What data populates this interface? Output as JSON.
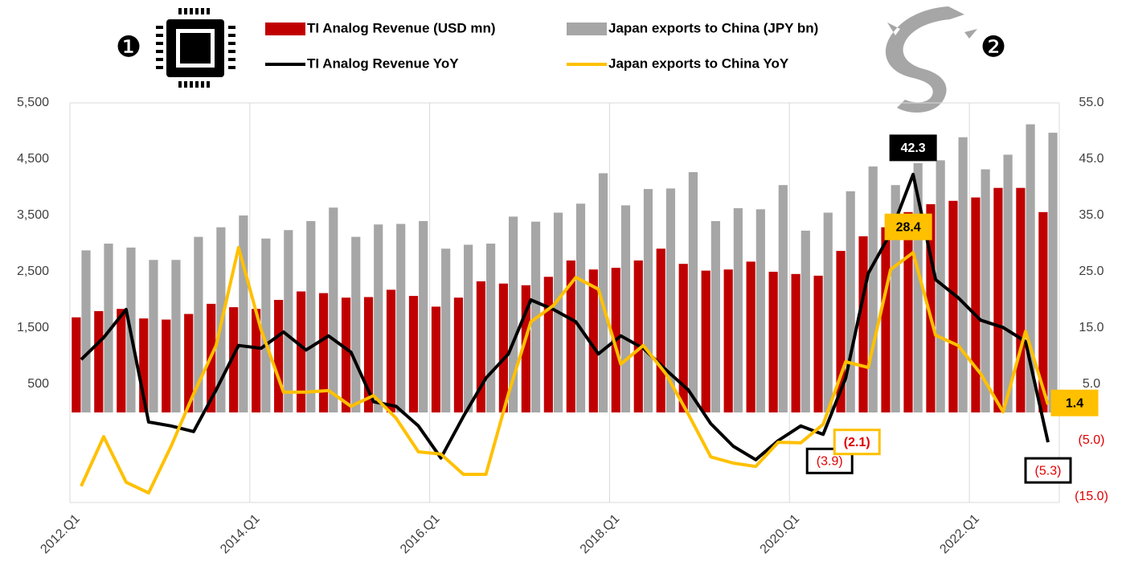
{
  "chart_data": {
    "type": "bar-line",
    "annotations": [
      "❶",
      "❷"
    ],
    "categories": [
      "2012.Q1",
      null,
      null,
      null,
      null,
      null,
      null,
      null,
      "2014.Q1",
      null,
      null,
      null,
      null,
      null,
      null,
      null,
      "2016.Q1",
      null,
      null,
      null,
      null,
      null,
      null,
      null,
      "2018.Q1",
      null,
      null,
      null,
      null,
      null,
      null,
      null,
      "2020.Q1",
      null,
      null,
      null,
      null,
      null,
      null,
      null,
      "2022.Q1",
      null,
      null,
      null
    ],
    "series": [
      {
        "name": "TI Analog Revenue (USD mn)",
        "kind": "bar",
        "color": "#c00000",
        "values": [
          1690,
          1800,
          1840,
          1670,
          1650,
          1750,
          1930,
          1870,
          1840,
          2000,
          2150,
          2120,
          2040,
          2050,
          2180,
          2070,
          1880,
          2040,
          2330,
          2290,
          2260,
          2410,
          2700,
          2540,
          2570,
          2700,
          2910,
          2640,
          2520,
          2540,
          2680,
          2500,
          2460,
          2430,
          2870,
          3130,
          3290,
          3560,
          3700,
          3760,
          3820,
          3990,
          3990,
          3560
        ]
      },
      {
        "name": "Japan exports to China (JPY bn)",
        "kind": "bar",
        "color": "#a6a6a6",
        "values": [
          2880,
          3000,
          2930,
          2710,
          2710,
          3120,
          3290,
          3500,
          3090,
          3240,
          3400,
          3640,
          3120,
          3340,
          3350,
          3400,
          2910,
          2980,
          3000,
          3480,
          3390,
          3550,
          3710,
          4250,
          3680,
          3970,
          3980,
          4270,
          3400,
          3630,
          3610,
          4040,
          3230,
          3550,
          3930,
          4370,
          4040,
          4430,
          4480,
          4890,
          4320,
          4580,
          5120,
          4970
        ]
      },
      {
        "name": "TI Analog Revenue YoY",
        "kind": "line",
        "axis": "y2",
        "color": "#000000",
        "values": [
          9.4,
          13.3,
          18.3,
          -1.7,
          -2.4,
          -3.4,
          4,
          11.9,
          11.4,
          14.3,
          11.1,
          13.6,
          10.7,
          1.9,
          1.1,
          -2.4,
          -8.1,
          -0.7,
          6.1,
          10.4,
          20,
          18.3,
          16.1,
          10.4,
          13.6,
          11.4,
          7.6,
          4,
          -2,
          -6,
          -8.4,
          -5,
          -2.4,
          -3.9,
          6.1,
          24.7,
          31.9,
          42.3,
          23.6,
          20.4,
          16.4,
          15.1,
          12.6,
          -5.3
        ],
        "value_labels": [
          null,
          null,
          null,
          null,
          null,
          null,
          null,
          null,
          null,
          null,
          null,
          null,
          null,
          null,
          null,
          null,
          null,
          null,
          null,
          null,
          null,
          null,
          null,
          null,
          null,
          null,
          null,
          null,
          null,
          null,
          null,
          null,
          null,
          "(3.9)",
          null,
          null,
          null,
          "42.3",
          null,
          null,
          null,
          null,
          null,
          "(5.3)"
        ]
      },
      {
        "name": "Japan exports to China YoY",
        "kind": "line",
        "axis": "y2",
        "color": "#ffc000",
        "values": [
          -13.1,
          -4.3,
          -12.4,
          -14.3,
          -6,
          3.3,
          11.9,
          29.3,
          14.7,
          3.6,
          3.6,
          3.9,
          1.1,
          3,
          -1,
          -7,
          -7.4,
          -11,
          -11,
          3.3,
          16.1,
          19,
          24,
          21.9,
          8.6,
          11.9,
          6.9,
          -0.3,
          -7.9,
          -9,
          -9.6,
          -5.3,
          -5.4,
          -2.1,
          9,
          8,
          25.4,
          28.4,
          13.7,
          11.9,
          6.9,
          0.1,
          14.4,
          1.4
        ],
        "value_labels": [
          null,
          null,
          null,
          null,
          null,
          null,
          null,
          null,
          null,
          null,
          null,
          null,
          null,
          null,
          null,
          null,
          null,
          null,
          null,
          null,
          null,
          null,
          null,
          null,
          null,
          null,
          null,
          null,
          null,
          null,
          null,
          null,
          null,
          "(2.1)",
          null,
          null,
          null,
          "28.4",
          null,
          null,
          null,
          null,
          null,
          "1.4"
        ]
      }
    ],
    "ylim": [
      -1600,
      5500
    ],
    "yticks": [
      {
        "value": 500,
        "label": "500"
      },
      {
        "value": 1500,
        "label": "1,500"
      },
      {
        "value": 2500,
        "label": "2,500"
      },
      {
        "value": 3500,
        "label": "3,500"
      },
      {
        "value": 4500,
        "label": "4,500"
      },
      {
        "value": 5500,
        "label": "5,500"
      }
    ],
    "y2lim": [
      -16,
      55
    ],
    "y2ticks": [
      {
        "value": -15,
        "label": "(15.0)"
      },
      {
        "value": -5,
        "label": "(5.0)"
      },
      {
        "value": 5,
        "label": "5.0"
      },
      {
        "value": 15,
        "label": "15.0"
      },
      {
        "value": 25,
        "label": "25.0"
      },
      {
        "value": 35,
        "label": "35.0"
      },
      {
        "value": 45,
        "label": "45.0"
      },
      {
        "value": 55,
        "label": "55.0"
      }
    ],
    "negative_color": "#e00000",
    "grid": true
  }
}
